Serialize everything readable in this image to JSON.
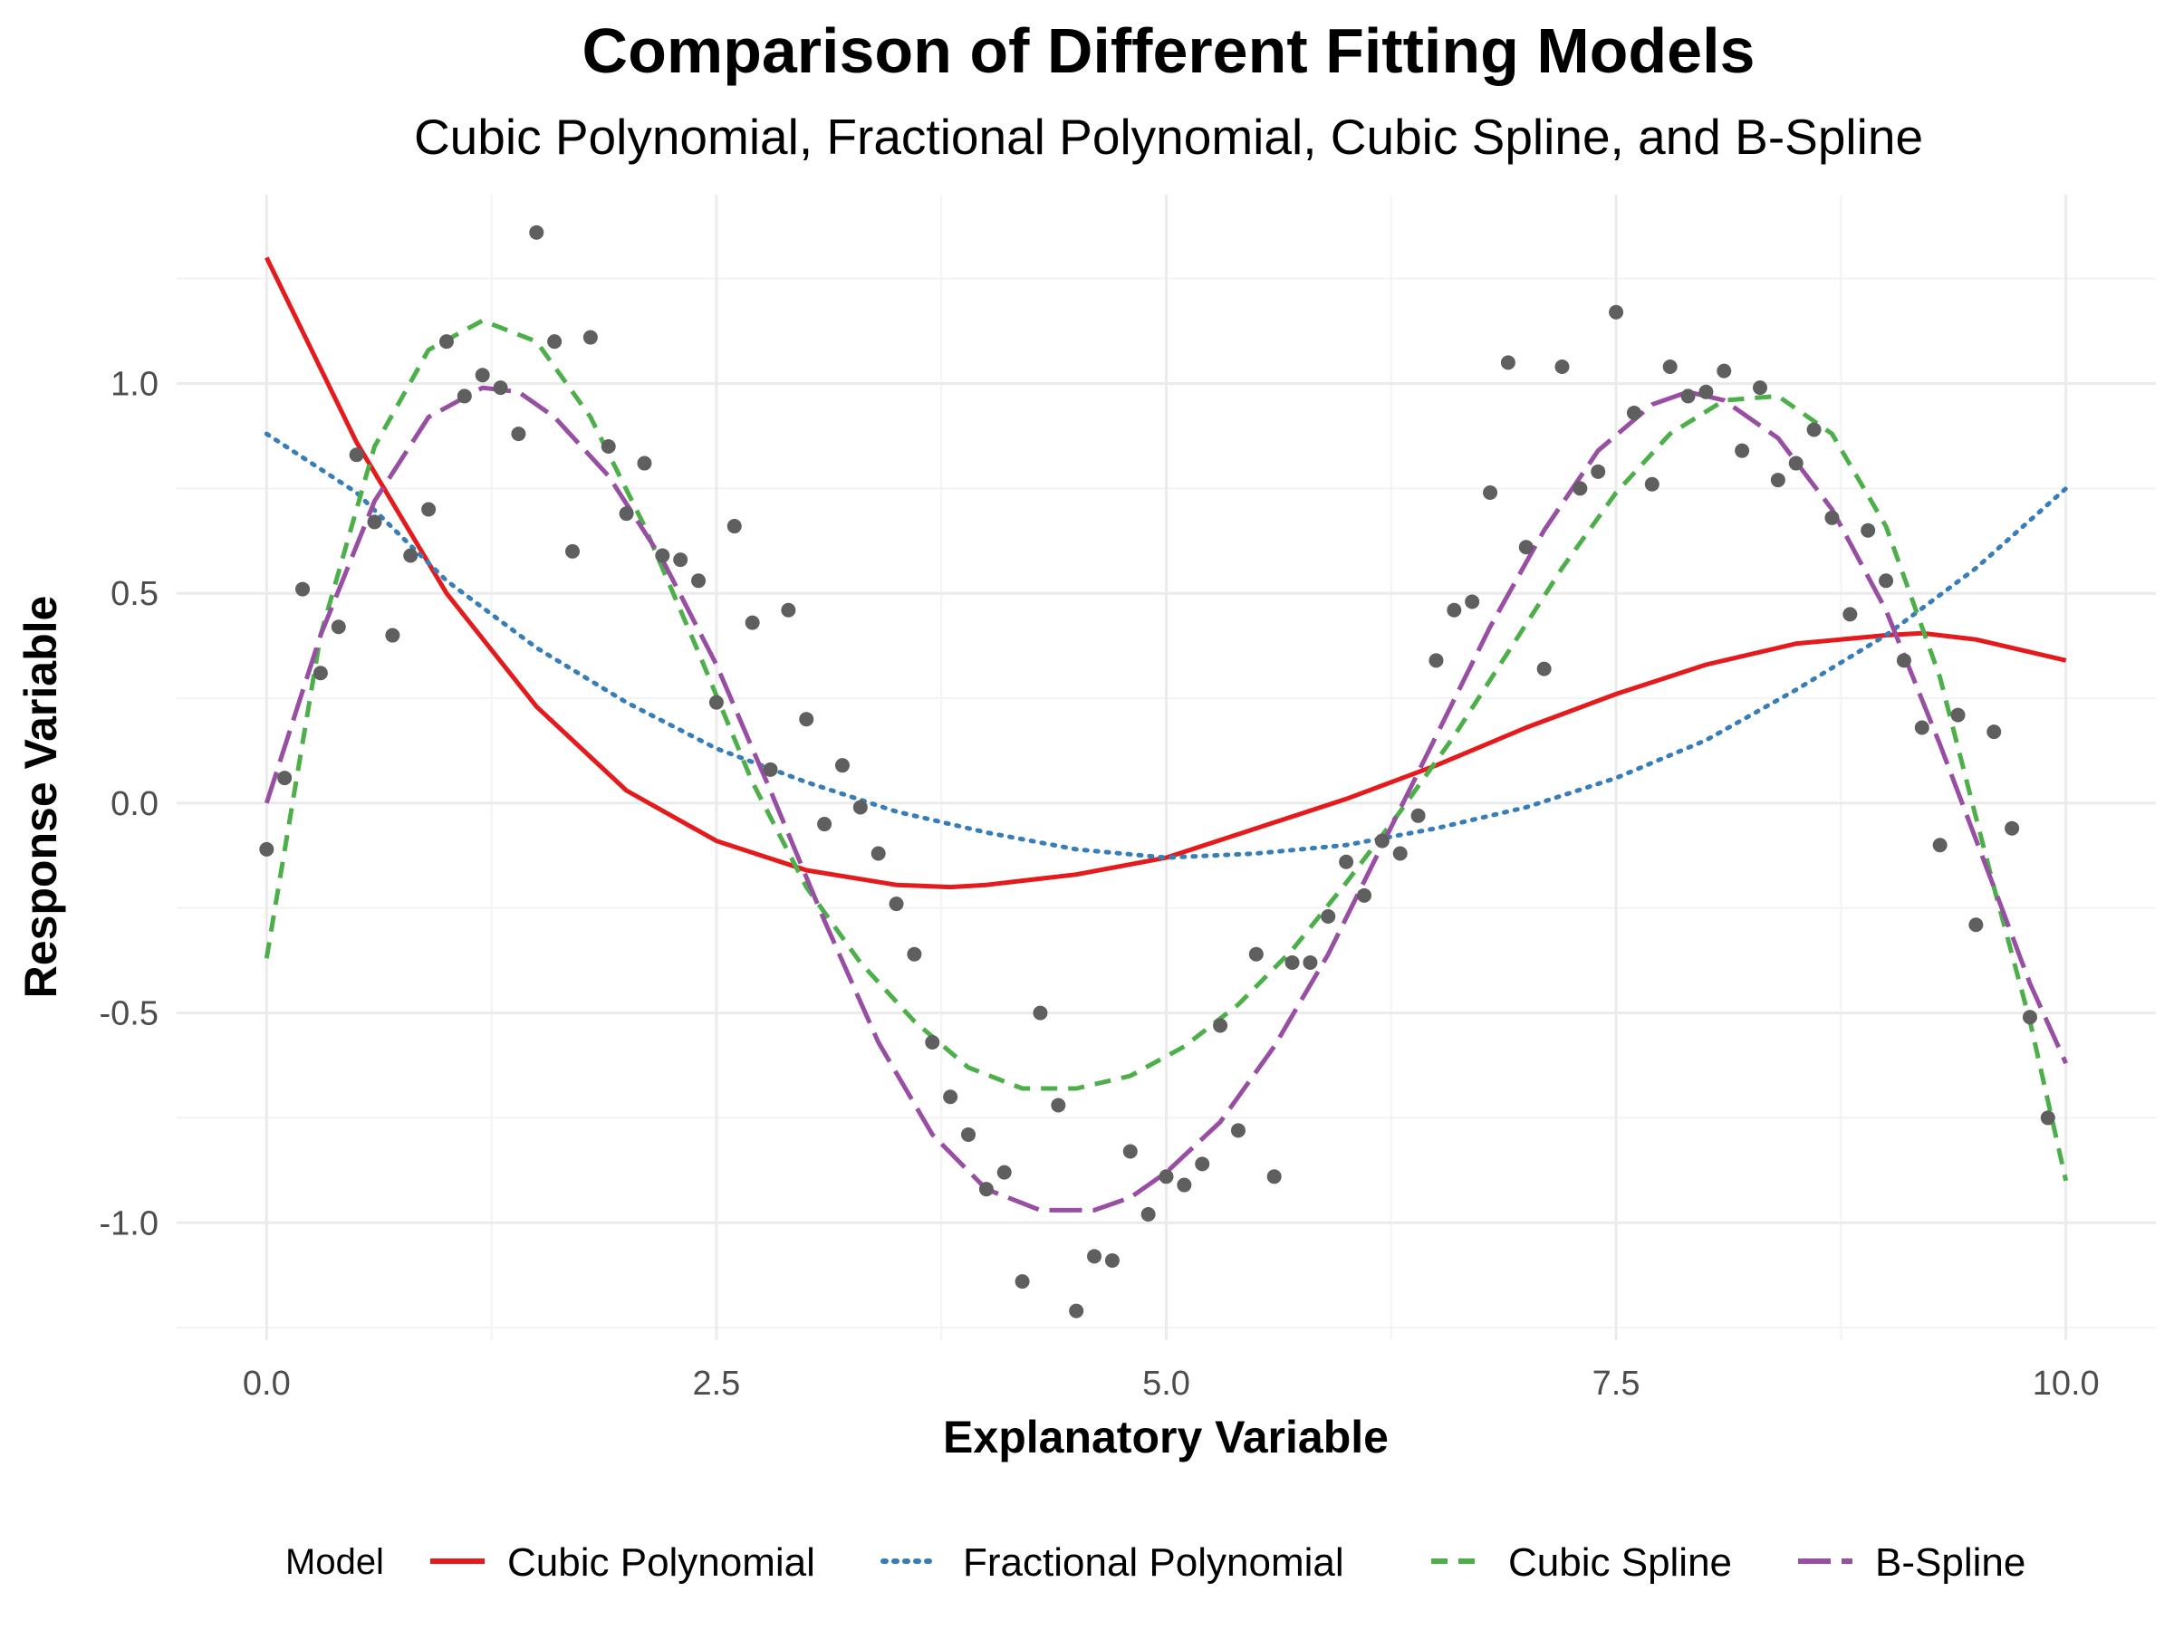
{
  "chart_data": {
    "type": "line",
    "title": "Comparison of Different Fitting Models",
    "subtitle": "Cubic Polynomial, Fractional Polynomial, Cubic Spline, and B-Spline",
    "xlabel": "Explanatory Variable",
    "ylabel": "Response Variable",
    "xlim": [
      -0.5,
      10.5
    ],
    "ylim": [
      -1.28,
      1.45
    ],
    "x_ticks": [
      0.0,
      2.5,
      5.0,
      7.5,
      10.0
    ],
    "x_tick_labels": [
      "0.0",
      "2.5",
      "5.0",
      "7.5",
      "10.0"
    ],
    "y_ticks": [
      -1.0,
      -0.5,
      0.0,
      0.5,
      1.0
    ],
    "y_tick_labels": [
      "-1.0",
      "-0.5",
      "0.0",
      "0.5",
      "1.0"
    ],
    "grid": true,
    "legend": {
      "title": "Model",
      "position": "bottom",
      "entries": [
        "Cubic Polynomial",
        "Fractional Polynomial",
        "Cubic Spline",
        "B-Spline"
      ]
    },
    "points": {
      "color": "#5f5f5f",
      "data": [
        [
          0.0,
          -0.11
        ],
        [
          0.1,
          0.06
        ],
        [
          0.2,
          0.51
        ],
        [
          0.3,
          0.31
        ],
        [
          0.4,
          0.42
        ],
        [
          0.5,
          0.83
        ],
        [
          0.6,
          0.67
        ],
        [
          0.7,
          0.4
        ],
        [
          0.8,
          0.59
        ],
        [
          0.9,
          0.7
        ],
        [
          1.0,
          1.1
        ],
        [
          1.1,
          0.97
        ],
        [
          1.2,
          1.02
        ],
        [
          1.3,
          0.99
        ],
        [
          1.4,
          0.88
        ],
        [
          1.5,
          1.36
        ],
        [
          1.6,
          1.1
        ],
        [
          1.7,
          0.6
        ],
        [
          1.8,
          1.11
        ],
        [
          1.9,
          0.85
        ],
        [
          2.0,
          0.69
        ],
        [
          2.1,
          0.81
        ],
        [
          2.2,
          0.59
        ],
        [
          2.3,
          0.58
        ],
        [
          2.4,
          0.53
        ],
        [
          2.5,
          0.24
        ],
        [
          2.6,
          0.66
        ],
        [
          2.7,
          0.43
        ],
        [
          2.8,
          0.08
        ],
        [
          2.9,
          0.46
        ],
        [
          3.0,
          0.2
        ],
        [
          3.1,
          -0.05
        ],
        [
          3.2,
          0.09
        ],
        [
          3.3,
          -0.01
        ],
        [
          3.4,
          -0.12
        ],
        [
          3.5,
          -0.24
        ],
        [
          3.6,
          -0.36
        ],
        [
          3.7,
          -0.57
        ],
        [
          3.8,
          -0.7
        ],
        [
          3.9,
          -0.79
        ],
        [
          4.0,
          -0.92
        ],
        [
          4.1,
          -0.88
        ],
        [
          4.2,
          -1.14
        ],
        [
          4.3,
          -0.5
        ],
        [
          4.4,
          -0.72
        ],
        [
          4.5,
          -1.21
        ],
        [
          4.6,
          -1.08
        ],
        [
          4.7,
          -1.09
        ],
        [
          4.8,
          -0.83
        ],
        [
          4.9,
          -0.98
        ],
        [
          5.0,
          -0.89
        ],
        [
          5.1,
          -0.91
        ],
        [
          5.2,
          -0.86
        ],
        [
          5.3,
          -0.53
        ],
        [
          5.4,
          -0.78
        ],
        [
          5.5,
          -0.36
        ],
        [
          5.6,
          -0.89
        ],
        [
          5.7,
          -0.38
        ],
        [
          5.8,
          -0.38
        ],
        [
          5.9,
          -0.27
        ],
        [
          6.0,
          -0.14
        ],
        [
          6.1,
          -0.22
        ],
        [
          6.2,
          -0.09
        ],
        [
          6.3,
          -0.12
        ],
        [
          6.4,
          -0.03
        ],
        [
          6.5,
          0.34
        ],
        [
          6.6,
          0.46
        ],
        [
          6.7,
          0.48
        ],
        [
          6.8,
          0.74
        ],
        [
          6.9,
          1.05
        ],
        [
          7.0,
          0.61
        ],
        [
          7.1,
          0.32
        ],
        [
          7.2,
          1.04
        ],
        [
          7.3,
          0.75
        ],
        [
          7.4,
          0.79
        ],
        [
          7.5,
          1.17
        ],
        [
          7.6,
          0.93
        ],
        [
          7.7,
          0.76
        ],
        [
          7.8,
          1.04
        ],
        [
          7.9,
          0.97
        ],
        [
          8.0,
          0.98
        ],
        [
          8.1,
          1.03
        ],
        [
          8.2,
          0.84
        ],
        [
          8.3,
          0.99
        ],
        [
          8.4,
          0.77
        ],
        [
          8.5,
          0.81
        ],
        [
          8.6,
          0.89
        ],
        [
          8.7,
          0.68
        ],
        [
          8.8,
          0.45
        ],
        [
          8.9,
          0.65
        ],
        [
          9.0,
          0.53
        ],
        [
          9.1,
          0.34
        ],
        [
          9.2,
          0.18
        ],
        [
          9.3,
          -0.1
        ],
        [
          9.4,
          0.21
        ],
        [
          9.5,
          -0.29
        ],
        [
          9.6,
          0.17
        ],
        [
          9.7,
          -0.06
        ],
        [
          9.8,
          -0.51
        ],
        [
          9.9,
          -0.75
        ]
      ]
    },
    "series": [
      {
        "name": "Cubic Polynomial",
        "color": "#e41a1c",
        "dash": "solid",
        "x": [
          0.0,
          0.5,
          1.0,
          1.5,
          2.0,
          2.5,
          3.0,
          3.5,
          3.8,
          4.0,
          4.5,
          5.0,
          5.5,
          6.0,
          6.5,
          7.0,
          7.5,
          8.0,
          8.5,
          9.0,
          9.2,
          9.5,
          10.0
        ],
        "y": [
          1.3,
          0.86,
          0.5,
          0.23,
          0.03,
          -0.09,
          -0.16,
          -0.195,
          -0.2,
          -0.195,
          -0.17,
          -0.13,
          -0.06,
          0.01,
          0.09,
          0.18,
          0.26,
          0.33,
          0.38,
          0.4,
          0.405,
          0.39,
          0.34
        ]
      },
      {
        "name": "Fractional Polynomial",
        "color": "#377eb8",
        "dash": "dotted",
        "x": [
          0.0,
          0.5,
          1.0,
          1.5,
          2.0,
          2.5,
          3.0,
          3.5,
          4.0,
          4.5,
          5.0,
          5.5,
          6.0,
          6.5,
          7.0,
          7.5,
          8.0,
          8.5,
          9.0,
          9.5,
          10.0
        ],
        "y": [
          0.88,
          0.74,
          0.53,
          0.37,
          0.24,
          0.13,
          0.05,
          -0.02,
          -0.07,
          -0.11,
          -0.13,
          -0.12,
          -0.1,
          -0.06,
          -0.01,
          0.06,
          0.15,
          0.27,
          0.4,
          0.56,
          0.75
        ]
      },
      {
        "name": "Cubic Spline",
        "color": "#4daf4a",
        "dash": "dashed",
        "x": [
          0.0,
          0.3,
          0.6,
          0.9,
          1.2,
          1.5,
          1.8,
          2.1,
          2.4,
          2.7,
          3.0,
          3.3,
          3.6,
          3.9,
          4.2,
          4.5,
          4.8,
          5.1,
          5.4,
          5.7,
          6.0,
          6.3,
          6.6,
          6.9,
          7.2,
          7.5,
          7.8,
          8.1,
          8.4,
          8.7,
          9.0,
          9.3,
          9.6,
          9.8,
          10.0
        ],
        "y": [
          -0.37,
          0.4,
          0.85,
          1.08,
          1.15,
          1.1,
          0.92,
          0.66,
          0.36,
          0.05,
          -0.2,
          -0.38,
          -0.52,
          -0.63,
          -0.68,
          -0.68,
          -0.65,
          -0.58,
          -0.48,
          -0.35,
          -0.19,
          -0.02,
          0.16,
          0.36,
          0.56,
          0.74,
          0.88,
          0.96,
          0.97,
          0.88,
          0.66,
          0.3,
          -0.2,
          -0.52,
          -0.9
        ]
      },
      {
        "name": "B-Spline",
        "color": "#984ea3",
        "dash": "longdash",
        "x": [
          0.0,
          0.3,
          0.6,
          0.9,
          1.2,
          1.4,
          1.6,
          1.9,
          2.2,
          2.5,
          2.8,
          3.1,
          3.4,
          3.7,
          4.0,
          4.3,
          4.6,
          4.8,
          5.0,
          5.3,
          5.6,
          5.9,
          6.2,
          6.5,
          6.8,
          7.1,
          7.4,
          7.7,
          7.9,
          8.1,
          8.4,
          8.7,
          9.0,
          9.3,
          9.6,
          9.8,
          10.0
        ],
        "y": [
          0.0,
          0.4,
          0.72,
          0.92,
          0.99,
          0.98,
          0.92,
          0.78,
          0.58,
          0.33,
          0.03,
          -0.28,
          -0.57,
          -0.79,
          -0.92,
          -0.97,
          -0.97,
          -0.94,
          -0.88,
          -0.76,
          -0.58,
          -0.36,
          -0.1,
          0.16,
          0.42,
          0.65,
          0.84,
          0.95,
          0.98,
          0.96,
          0.87,
          0.7,
          0.46,
          0.14,
          -0.2,
          -0.43,
          -0.62
        ]
      }
    ]
  }
}
